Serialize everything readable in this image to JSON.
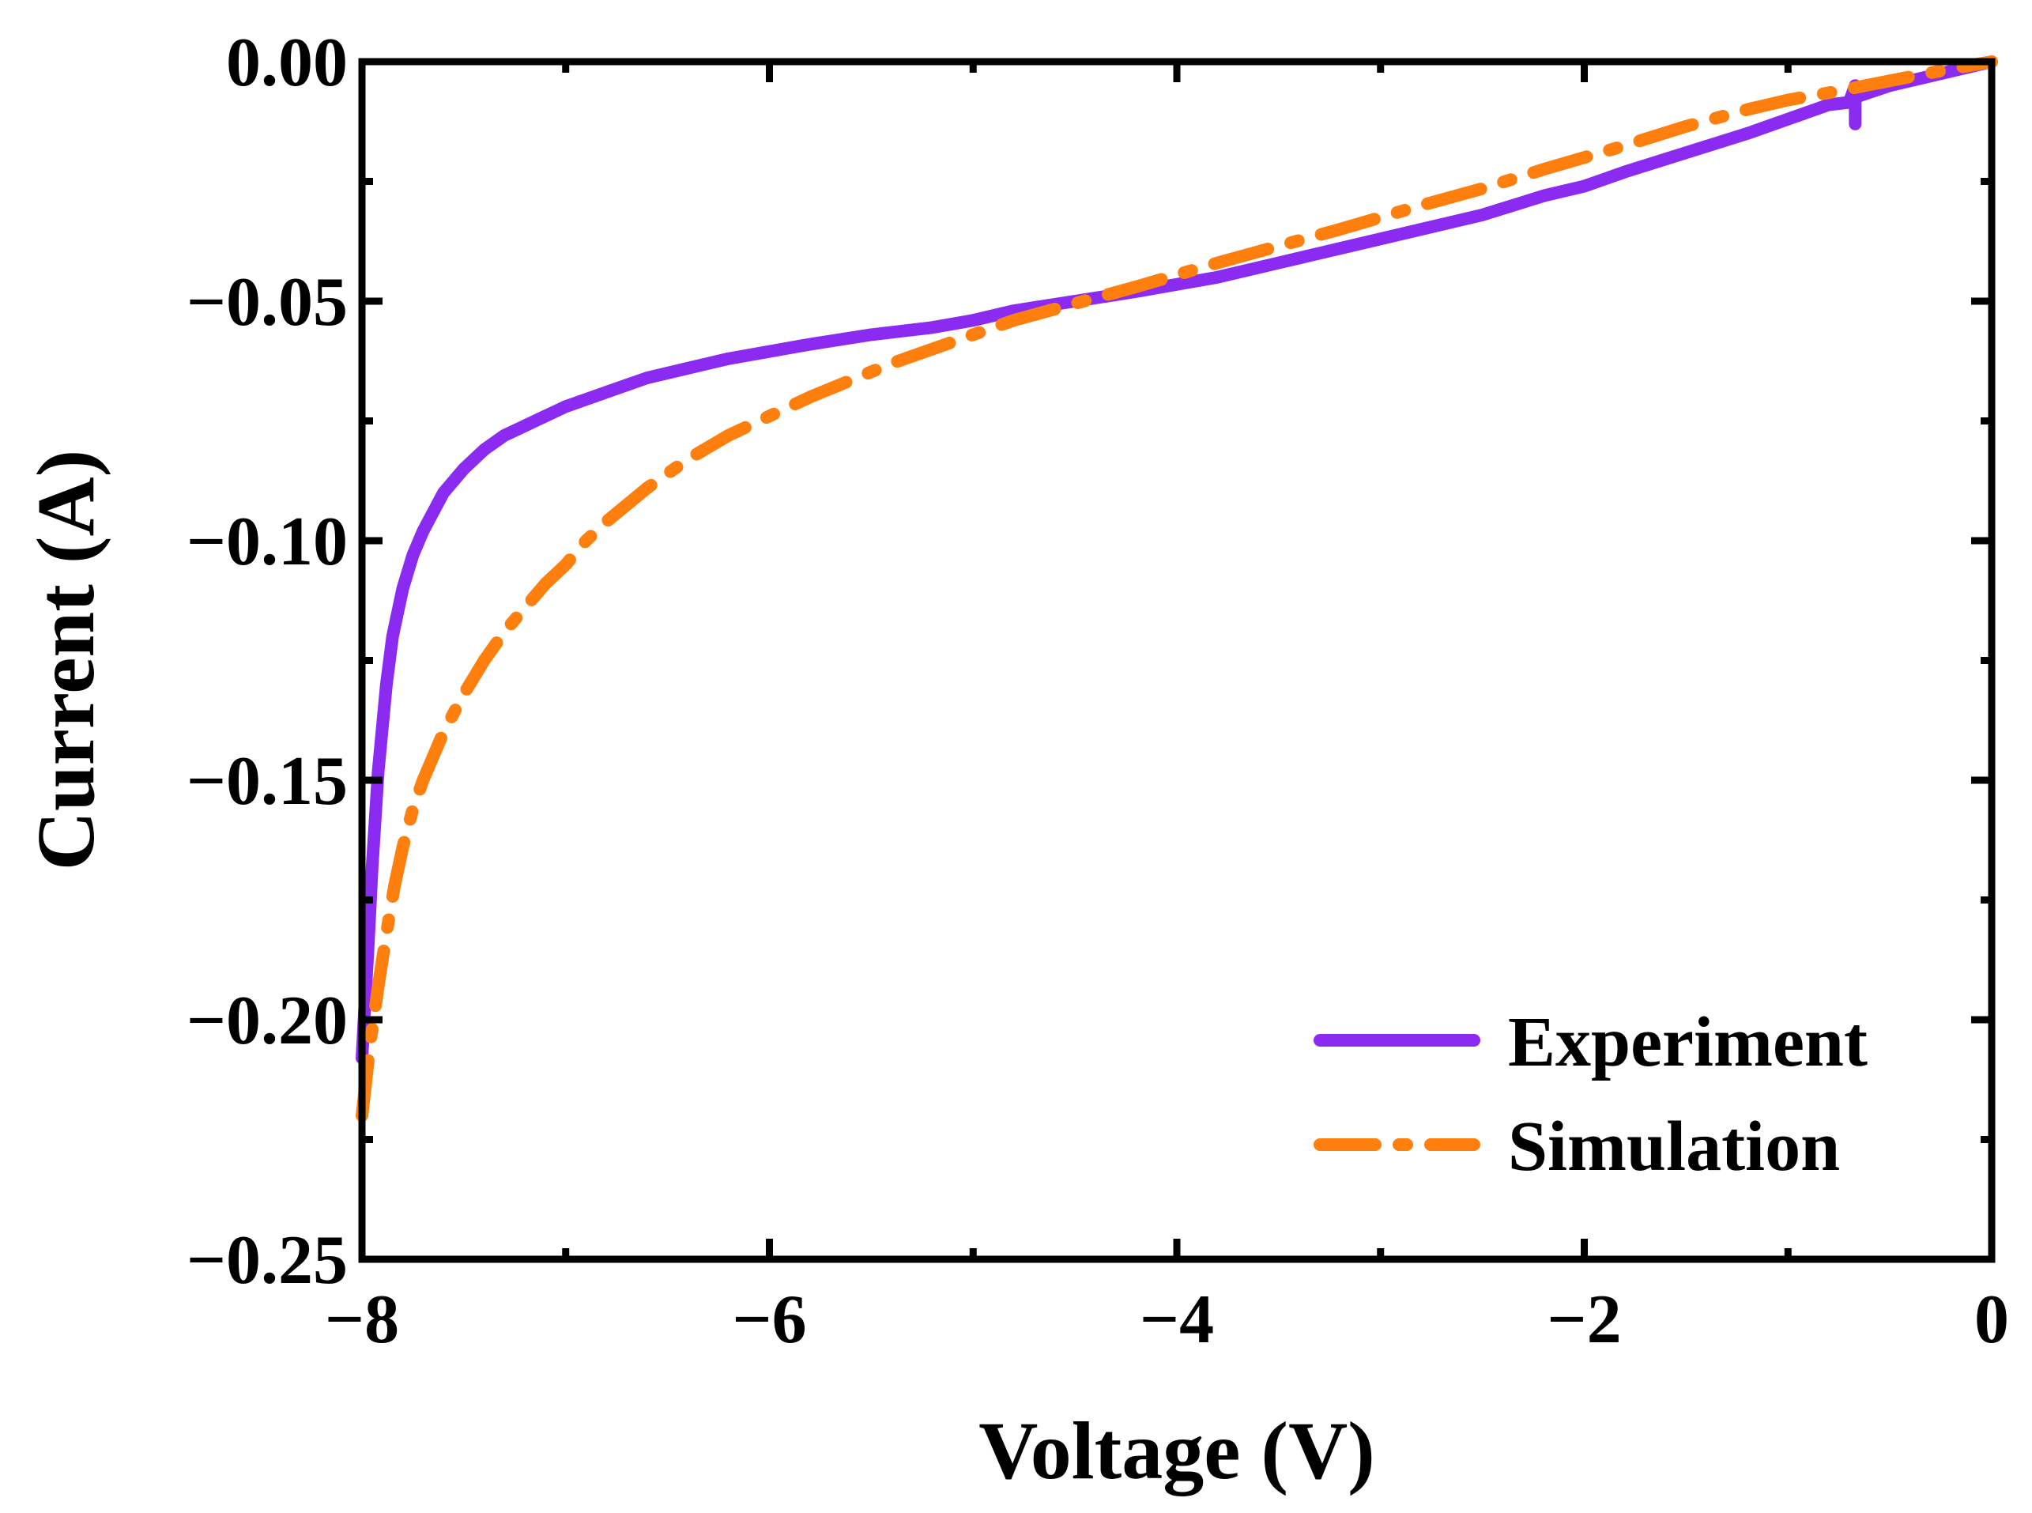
{
  "chart_data": {
    "type": "line",
    "title": "",
    "xlabel": "Voltage (V)",
    "ylabel": "Current (A)",
    "xlim": [
      -8,
      0
    ],
    "ylim": [
      -0.25,
      0.0
    ],
    "x_ticks": [
      -8,
      -6,
      -4,
      -2,
      0
    ],
    "x_tick_labels": [
      "−8",
      "−6",
      "−4",
      "−2",
      "0"
    ],
    "y_ticks": [
      0.0,
      -0.05,
      -0.1,
      -0.15,
      -0.2,
      -0.25
    ],
    "y_tick_labels": [
      "0.00",
      "−0.05",
      "−0.10",
      "−0.15",
      "−0.20",
      "−0.25"
    ],
    "grid": false,
    "legend_position": "bottom-right",
    "series": [
      {
        "name": "Experiment",
        "color": "#8B2BF2",
        "style": "solid",
        "x": [
          -8.0,
          -7.99,
          -7.97,
          -7.95,
          -7.92,
          -7.88,
          -7.85,
          -7.8,
          -7.75,
          -7.7,
          -7.6,
          -7.5,
          -7.4,
          -7.3,
          -7.2,
          -7.1,
          -7.0,
          -6.8,
          -6.6,
          -6.4,
          -6.2,
          -6.0,
          -5.8,
          -5.5,
          -5.2,
          -5.0,
          -4.8,
          -4.5,
          -4.2,
          -4.0,
          -3.8,
          -3.5,
          -3.2,
          -3.0,
          -2.8,
          -2.5,
          -2.2,
          -2.0,
          -1.8,
          -1.5,
          -1.2,
          -1.0,
          -0.8,
          -0.7,
          -0.67,
          -0.67,
          -0.67,
          -0.64,
          -0.5,
          -0.3,
          -0.1,
          0.0
        ],
        "y": [
          -0.208,
          -0.2,
          -0.185,
          -0.168,
          -0.148,
          -0.13,
          -0.12,
          -0.11,
          -0.103,
          -0.098,
          -0.09,
          -0.085,
          -0.081,
          -0.078,
          -0.076,
          -0.074,
          -0.072,
          -0.069,
          -0.066,
          -0.064,
          -0.062,
          -0.0605,
          -0.059,
          -0.057,
          -0.0555,
          -0.054,
          -0.052,
          -0.05,
          -0.048,
          -0.0465,
          -0.045,
          -0.042,
          -0.039,
          -0.037,
          -0.035,
          -0.032,
          -0.028,
          -0.026,
          -0.023,
          -0.019,
          -0.015,
          -0.012,
          -0.009,
          -0.0085,
          -0.005,
          -0.013,
          -0.0075,
          -0.007,
          -0.005,
          -0.003,
          -0.001,
          0.0
        ]
      },
      {
        "name": "Simulation",
        "color": "#FF7F0E",
        "style": "dash-dot",
        "x": [
          -8.0,
          -7.96,
          -7.92,
          -7.88,
          -7.84,
          -7.8,
          -7.75,
          -7.7,
          -7.6,
          -7.5,
          -7.4,
          -7.3,
          -7.2,
          -7.1,
          -7.0,
          -6.9,
          -6.8,
          -6.6,
          -6.4,
          -6.2,
          -6.0,
          -5.8,
          -5.6,
          -5.4,
          -5.2,
          -5.0,
          -4.8,
          -4.5,
          -4.2,
          -4.0,
          -3.8,
          -3.5,
          -3.2,
          -3.0,
          -2.8,
          -2.5,
          -2.2,
          -2.0,
          -1.8,
          -1.5,
          -1.2,
          -1.0,
          -0.8,
          -0.5,
          -0.2,
          0.0
        ],
        "y": [
          -0.22,
          -0.205,
          -0.193,
          -0.182,
          -0.172,
          -0.164,
          -0.156,
          -0.15,
          -0.14,
          -0.132,
          -0.125,
          -0.119,
          -0.114,
          -0.109,
          -0.105,
          -0.1,
          -0.096,
          -0.089,
          -0.083,
          -0.078,
          -0.074,
          -0.07,
          -0.0665,
          -0.063,
          -0.06,
          -0.057,
          -0.054,
          -0.0505,
          -0.047,
          -0.0445,
          -0.042,
          -0.0385,
          -0.035,
          -0.0325,
          -0.03,
          -0.0265,
          -0.0225,
          -0.02,
          -0.0175,
          -0.0135,
          -0.01,
          -0.008,
          -0.0065,
          -0.004,
          -0.0015,
          0.0
        ]
      }
    ]
  }
}
